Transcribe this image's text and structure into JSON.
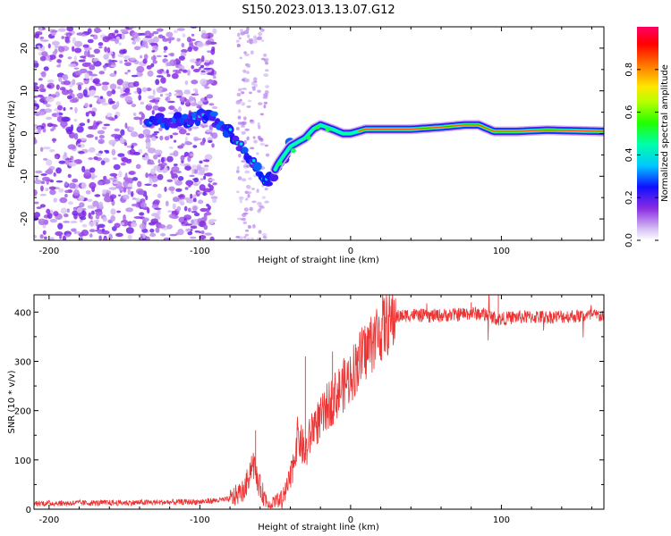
{
  "title": "S150.2023.013.13.07.G12",
  "chart_data": [
    {
      "type": "heatmap",
      "xlabel": "Height of straight line (km)",
      "ylabel": "Frequency (Hz)",
      "xlim": [
        -210,
        168
      ],
      "ylim": [
        -25,
        25
      ],
      "x_ticks": [
        -200,
        -100,
        0,
        100
      ],
      "y_ticks": [
        -20,
        -10,
        0,
        10,
        20
      ],
      "colorbar": {
        "label": "Normalized spectral amplitude",
        "range": [
          0.0,
          1.0
        ],
        "ticks": [
          "0.0",
          "0.2",
          "0.4",
          "0.6",
          "0.8"
        ],
        "tick_values": [
          0.0,
          0.2,
          0.4,
          0.6,
          0.8
        ]
      },
      "ridge": {
        "description_points": [
          [
            -110,
            3
          ],
          [
            -95,
            4
          ],
          [
            -88,
            3
          ],
          [
            -80,
            0
          ],
          [
            -70,
            -4
          ],
          [
            -62,
            -8
          ],
          [
            -55,
            -12
          ],
          [
            -48,
            -7
          ],
          [
            -40,
            -3
          ],
          [
            -30,
            -1
          ],
          [
            -25,
            1
          ],
          [
            -20,
            2
          ],
          [
            -12,
            1
          ],
          [
            -5,
            0
          ],
          [
            0,
            0
          ],
          [
            10,
            1
          ],
          [
            40,
            1
          ],
          [
            60,
            1.5
          ],
          [
            75,
            2
          ],
          [
            85,
            2
          ],
          [
            95,
            0.5
          ],
          [
            110,
            0.5
          ],
          [
            130,
            0.8
          ],
          [
            168,
            0.5
          ]
        ]
      }
    },
    {
      "type": "line",
      "xlabel": "Height of straight line (km)",
      "ylabel": "SNR (10 * v/v)",
      "xlim": [
        -210,
        168
      ],
      "ylim": [
        0,
        435
      ],
      "x_ticks": [
        -200,
        -100,
        0,
        100
      ],
      "y_ticks": [
        0,
        100,
        200,
        300,
        400
      ],
      "series": [
        {
          "name": "SNR",
          "color": "#ee3333",
          "x": [
            -210,
            -150,
            -100,
            -80,
            -70,
            -65,
            -62,
            -58,
            -55,
            -50,
            -45,
            -40,
            -35,
            -30,
            -25,
            -20,
            -15,
            -10,
            -5,
            0,
            5,
            10,
            15,
            20,
            25,
            30,
            40,
            50,
            60,
            70,
            80,
            90,
            98,
            110,
            130,
            150,
            168
          ],
          "y": [
            12,
            13,
            15,
            20,
            40,
            100,
            60,
            30,
            15,
            10,
            20,
            60,
            150,
            110,
            170,
            180,
            210,
            230,
            250,
            270,
            300,
            320,
            345,
            365,
            380,
            390,
            395,
            392,
            393,
            395,
            398,
            395,
            385,
            390,
            390,
            392,
            393
          ]
        }
      ]
    }
  ]
}
